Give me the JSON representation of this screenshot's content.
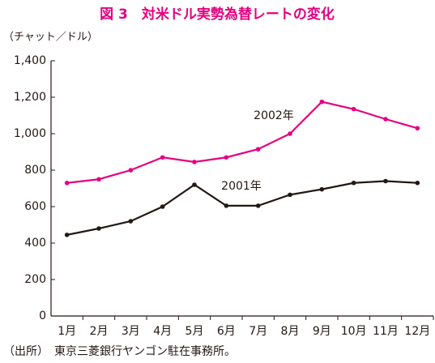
{
  "chart_data": {
    "type": "line",
    "title": "図 3　対米ドル実勢為替レートの変化",
    "y_label": "（チャット／ドル）",
    "source": "（出所）　東京三菱銀行ヤンゴン駐在事務所。",
    "categories": [
      "1月",
      "2月",
      "3月",
      "4月",
      "5月",
      "6月",
      "7月",
      "8月",
      "9月",
      "10月",
      "11月",
      "12月"
    ],
    "series": [
      {
        "name": "2002年",
        "color": "#e4007f",
        "values": [
          730,
          750,
          800,
          870,
          845,
          870,
          915,
          1000,
          1175,
          1135,
          1080,
          1030
        ]
      },
      {
        "name": "2001年",
        "color": "#231815",
        "values": [
          445,
          480,
          520,
          600,
          720,
          605,
          605,
          665,
          695,
          730,
          740,
          730
        ]
      }
    ],
    "ylim": [
      0,
      1400
    ],
    "yticks": [
      0,
      200,
      400,
      600,
      800,
      {
        "value": 1000,
        "label": "1,000"
      },
      {
        "value": 1200,
        "label": "1,200"
      },
      {
        "value": 1400,
        "label": "1,400"
      }
    ],
    "grid": false
  }
}
